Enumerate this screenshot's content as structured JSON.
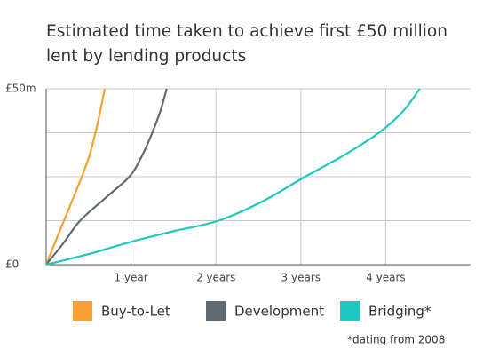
{
  "chart_data": {
    "type": "line",
    "title": "Estimated time taken to achieve first £50 million lent by lending products",
    "note": "*dating from 2008",
    "xlim": [
      0,
      5
    ],
    "ylim": [
      0,
      50
    ],
    "xticks": [
      {
        "value": 1,
        "label": "1 year"
      },
      {
        "value": 2,
        "label": "2 years"
      },
      {
        "value": 3,
        "label": "3 years"
      },
      {
        "value": 4,
        "label": "4 years"
      }
    ],
    "yticks": [
      {
        "value": 0,
        "label": "£0"
      },
      {
        "value": 12.5,
        "label": null
      },
      {
        "value": 25,
        "label": null
      },
      {
        "value": 37.5,
        "label": null
      },
      {
        "value": 50,
        "label": "£50m"
      }
    ],
    "grid": true,
    "series": [
      {
        "name": "Buy-to-Let",
        "color": "#f7a133",
        "x": [
          0,
          0.1,
          0.21,
          0.32,
          0.42,
          0.51,
          0.58,
          0.64,
          0.69
        ],
        "values": [
          0,
          6,
          12.5,
          19,
          25,
          31,
          37.5,
          44,
          50
        ]
      },
      {
        "name": "Development",
        "color": "#5f6b70",
        "x": [
          0,
          0.2,
          0.4,
          0.7,
          0.98,
          1.13,
          1.25,
          1.35,
          1.42
        ],
        "values": [
          0,
          6,
          12.5,
          19,
          25,
          31,
          37.5,
          44,
          50
        ]
      },
      {
        "name": "Bridging*",
        "color": "#1ec8c0",
        "x": [
          0,
          0.5,
          1,
          1.5,
          2.03,
          2.55,
          3.05,
          3.5,
          3.92,
          4.2,
          4.4
        ],
        "values": [
          0,
          3,
          6.5,
          9.5,
          12.5,
          18,
          25,
          31,
          37.5,
          43.5,
          50
        ]
      }
    ]
  }
}
